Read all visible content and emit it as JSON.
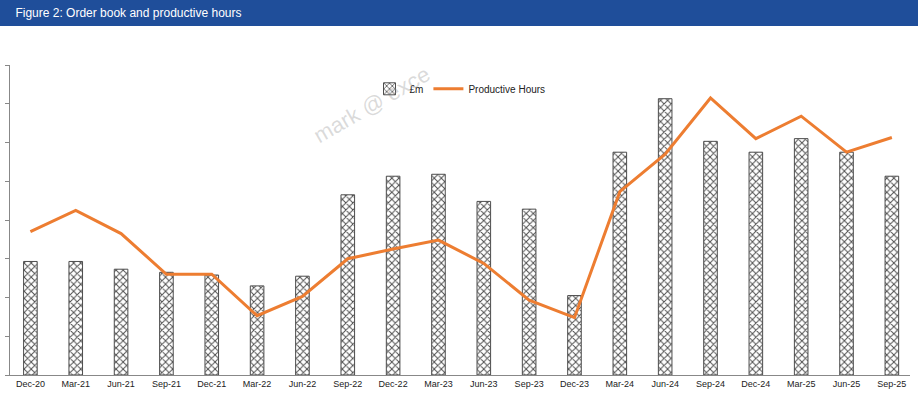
{
  "chart_data": {
    "type": "bar",
    "title": "Figure 2: Order book and productive hours",
    "annotations": [
      "mark @ exce"
    ],
    "categories": [
      "Dec-20",
      "Mar-21",
      "Jun-21",
      "Sep-21",
      "Dec-21",
      "Mar-22",
      "Jun-22",
      "Sep-22",
      "Dec-22",
      "Mar-23",
      "Jun-23",
      "Sep-23",
      "Dec-23",
      "Mar-24",
      "Jun-24",
      "Sep-24",
      "Dec-24",
      "Mar-25",
      "Jun-25",
      "Sep-25"
    ],
    "series": [
      {
        "name": "£m",
        "type": "bar",
        "color": "#4d4d4d",
        "marker": "lattice",
        "values": [
          2.93,
          2.93,
          2.73,
          2.65,
          2.58,
          2.3,
          2.55,
          4.65,
          5.13,
          5.18,
          4.48,
          4.28,
          2.05,
          5.75,
          7.13,
          6.03,
          5.75,
          6.1,
          5.75,
          5.13
        ]
      },
      {
        "name": "Productive Hours",
        "type": "line",
        "color": "#ed7d31",
        "line_style": "solid",
        "values": [
          3.7,
          4.25,
          3.65,
          2.6,
          2.6,
          1.53,
          2.03,
          3.0,
          3.25,
          3.48,
          2.88,
          1.93,
          1.48,
          4.73,
          5.7,
          7.15,
          6.1,
          6.68,
          5.75,
          6.13
        ]
      }
    ],
    "ylim": [
      0,
      8
    ],
    "yticks": [
      0,
      1,
      2,
      3,
      4,
      5,
      6,
      7,
      8
    ],
    "grid": false,
    "legend": "top",
    "tick_labels": "x"
  }
}
